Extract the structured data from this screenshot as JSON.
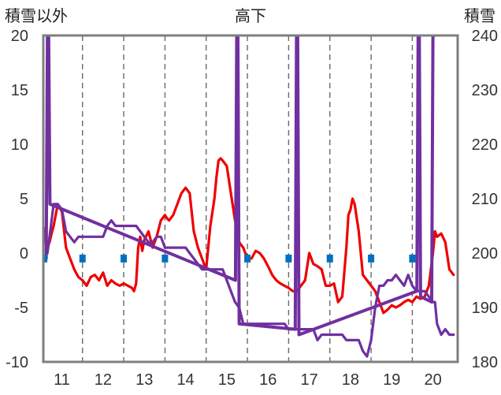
{
  "chart_data": {
    "type": "line",
    "title": "高下",
    "left_axis_label": "積雪以外",
    "right_axis_label": "積雪",
    "x_tick_labels": [
      "11",
      "12",
      "13",
      "14",
      "15",
      "16",
      "17",
      "18",
      "19",
      "20"
    ],
    "x_range": [
      10.55,
      20.6
    ],
    "y_left_range": [
      -10,
      20
    ],
    "y_left_ticks": [
      -10,
      -5,
      0,
      5,
      10,
      15,
      20
    ],
    "y_right_range": [
      180,
      240
    ],
    "y_right_ticks": [
      180,
      190,
      200,
      210,
      220,
      230,
      240
    ],
    "grid": "vertical dashed",
    "colors": {
      "red": "#ee0000",
      "purple": "#7030a0",
      "blue": "#0070c0",
      "frame": "#7f7f7f"
    },
    "series": [
      {
        "color": "red",
        "axis": "left",
        "x": [
          10.55,
          10.6,
          10.65,
          10.7,
          10.75,
          10.8,
          10.9,
          11.0,
          11.1,
          11.2,
          11.3,
          11.4,
          11.5,
          11.6,
          11.7,
          11.8,
          11.9,
          12.0,
          12.1,
          12.2,
          12.3,
          12.4,
          12.5,
          12.6,
          12.7,
          12.75,
          12.8,
          12.85,
          12.9,
          12.95,
          13.0,
          13.1,
          13.2,
          13.3,
          13.4,
          13.5,
          13.55,
          13.6,
          13.7,
          13.8,
          13.9,
          14.0,
          14.1,
          14.2,
          14.3,
          14.4,
          14.5,
          14.6,
          14.7,
          14.75,
          14.8,
          14.85,
          14.9,
          15.0,
          15.1,
          15.2,
          15.3,
          15.4,
          15.5,
          15.6,
          15.7,
          15.8,
          15.9,
          16.0,
          16.1,
          16.2,
          16.3,
          16.4,
          16.5,
          16.6,
          16.7,
          16.8,
          16.9,
          17.0,
          17.1,
          17.2,
          17.3,
          17.4,
          17.5,
          17.6,
          17.7,
          17.8,
          17.9,
          17.95,
          18.0,
          18.05,
          18.1,
          18.2,
          18.3,
          18.4,
          18.5,
          18.6,
          18.7,
          18.8,
          18.9,
          19.0,
          19.1,
          19.2,
          19.3,
          19.4,
          19.5,
          19.6,
          19.7,
          19.8,
          19.9,
          20.0,
          20.05,
          20.1,
          20.2,
          20.3,
          20.4,
          20.5
        ],
        "values": [
          0.8,
          2.3,
          0.5,
          1.0,
          1.8,
          2.5,
          4.5,
          3.8,
          0.5,
          -0.5,
          -1.5,
          -2.2,
          -2.5,
          -3.0,
          -2.2,
          -2.0,
          -2.5,
          -1.8,
          -3.0,
          -2.5,
          -2.8,
          -3.0,
          -2.8,
          -3.0,
          -3.2,
          -3.5,
          -2.8,
          0.5,
          1.5,
          0.2,
          1.2,
          2.0,
          0.5,
          1.5,
          3.0,
          3.5,
          3.2,
          3.0,
          3.5,
          4.5,
          5.5,
          6.0,
          5.5,
          2.0,
          0.5,
          -0.5,
          -1.5,
          2.5,
          5.0,
          7.0,
          8.5,
          8.7,
          8.5,
          8.0,
          5.5,
          3.0,
          1.0,
          0.5,
          -0.5,
          -0.5,
          0.2,
          0.0,
          -0.5,
          -1.2,
          -2.0,
          -2.5,
          -2.8,
          -3.0,
          -3.2,
          -3.5,
          -3.5,
          -3.0,
          -2.5,
          0.0,
          -1.0,
          -1.2,
          -1.5,
          -3.0,
          -3.0,
          -2.8,
          -4.5,
          -4.0,
          0.5,
          3.5,
          4.0,
          5.0,
          4.5,
          2.0,
          -2.0,
          -2.5,
          -3.0,
          -3.5,
          -4.5,
          -5.5,
          -5.2,
          -4.8,
          -5.0,
          -4.8,
          -4.5,
          -4.3,
          -4.5,
          -4.0,
          -4.2,
          -4.0,
          -3.0,
          0.0,
          2.0,
          1.5,
          1.8,
          1.0,
          -1.5,
          -2.0
        ]
      },
      {
        "color": "purple",
        "axis": "left",
        "x": [
          10.55,
          10.6,
          10.65,
          10.7,
          10.75,
          10.8,
          10.85,
          10.9,
          11.0,
          11.1,
          11.2,
          11.3,
          11.4,
          11.5,
          11.6,
          11.7,
          11.8,
          11.9,
          12.0,
          12.1,
          12.2,
          12.3,
          12.4,
          12.5,
          12.6,
          12.7,
          12.8,
          12.9,
          13.0,
          13.1,
          13.2,
          13.3,
          13.4,
          13.5,
          13.6,
          13.7,
          13.8,
          13.9,
          14.0,
          14.1,
          14.2,
          14.3,
          14.4,
          14.5,
          14.6,
          14.7,
          14.8,
          14.9,
          15.0,
          15.1,
          15.2,
          15.3,
          15.4,
          15.5,
          15.6,
          15.7,
          15.8,
          15.9,
          16.0,
          16.1,
          16.2,
          16.3,
          16.4,
          16.5,
          16.6,
          16.7,
          16.8,
          16.9,
          17.0,
          17.1,
          17.2,
          17.3,
          17.4,
          17.5,
          17.6,
          17.7,
          17.8,
          17.9,
          18.0,
          18.05,
          18.1,
          18.15,
          18.2,
          18.3,
          18.4,
          18.5,
          18.6,
          18.7,
          18.8,
          18.9,
          19.0,
          19.1,
          19.2,
          19.3,
          19.4,
          19.5,
          19.6,
          19.7,
          19.8,
          19.9,
          20.0,
          20.05,
          20.1,
          20.2,
          20.3,
          20.4,
          20.5
        ],
        "values": [
          -0.5,
          -0.3,
          0.0,
          1.5,
          3.0,
          4.5,
          4.5,
          4.5,
          4.0,
          2.0,
          1.5,
          1.0,
          1.5,
          1.5,
          1.5,
          1.5,
          1.5,
          1.5,
          1.5,
          2.5,
          3.0,
          2.5,
          2.5,
          2.5,
          2.5,
          2.5,
          2.5,
          2.0,
          1.5,
          1.0,
          1.0,
          1.5,
          1.5,
          0.5,
          0.5,
          0.5,
          0.5,
          0.5,
          0.5,
          0.0,
          -0.5,
          -1.0,
          -1.5,
          -1.5,
          -1.5,
          -1.5,
          -1.5,
          -1.5,
          -2.5,
          -3.5,
          -4.5,
          -5.0,
          -6.5,
          -6.5,
          -6.5,
          -6.5,
          -6.5,
          -6.5,
          -6.5,
          -6.5,
          -6.5,
          -6.5,
          -6.5,
          -7.0,
          -7.0,
          -7.0,
          -7.0,
          -7.0,
          -7.0,
          -7.0,
          -8.0,
          -7.5,
          -7.5,
          -7.5,
          -7.5,
          -7.5,
          -7.5,
          -8.0,
          -8.0,
          -8.0,
          -8.0,
          -8.0,
          -8.0,
          -9.0,
          -9.5,
          -8.0,
          -5.0,
          -3.0,
          -3.0,
          -2.5,
          -2.5,
          -2.0,
          -2.5,
          -3.0,
          -2.0,
          -3.0,
          -3.5,
          -3.5,
          -3.5,
          -4.0,
          -4.5,
          -4.5,
          -6.5,
          -7.5,
          -7.0,
          -7.5,
          -7.5
        ]
      },
      {
        "color": "purple",
        "axis": "left",
        "style": "vertical bars",
        "x": [
          10.62,
          10.65,
          10.68,
          10.71,
          15.21,
          15.24,
          15.27,
          15.3,
          16.66,
          16.69,
          16.72,
          16.75,
          19.61,
          19.64,
          19.67,
          19.7,
          19.97,
          20.0,
          20.03
        ],
        "values": [
          -0.5,
          20,
          20,
          4.5,
          -2.5,
          20,
          20,
          -6.5,
          -7.0,
          20,
          20,
          -7.5,
          -3.5,
          20,
          20,
          -4.0,
          -4.5,
          20,
          20
        ]
      },
      {
        "color": "blue",
        "axis": "left",
        "style": "markers",
        "x": [
          10.57,
          11.5,
          12.5,
          13.5,
          15.5,
          16.5,
          17.5,
          18.5,
          19.5
        ],
        "values": [
          -0.5,
          -0.5,
          -0.5,
          -0.5,
          -0.5,
          -0.5,
          -0.5,
          -0.5,
          -0.5
        ]
      }
    ]
  }
}
